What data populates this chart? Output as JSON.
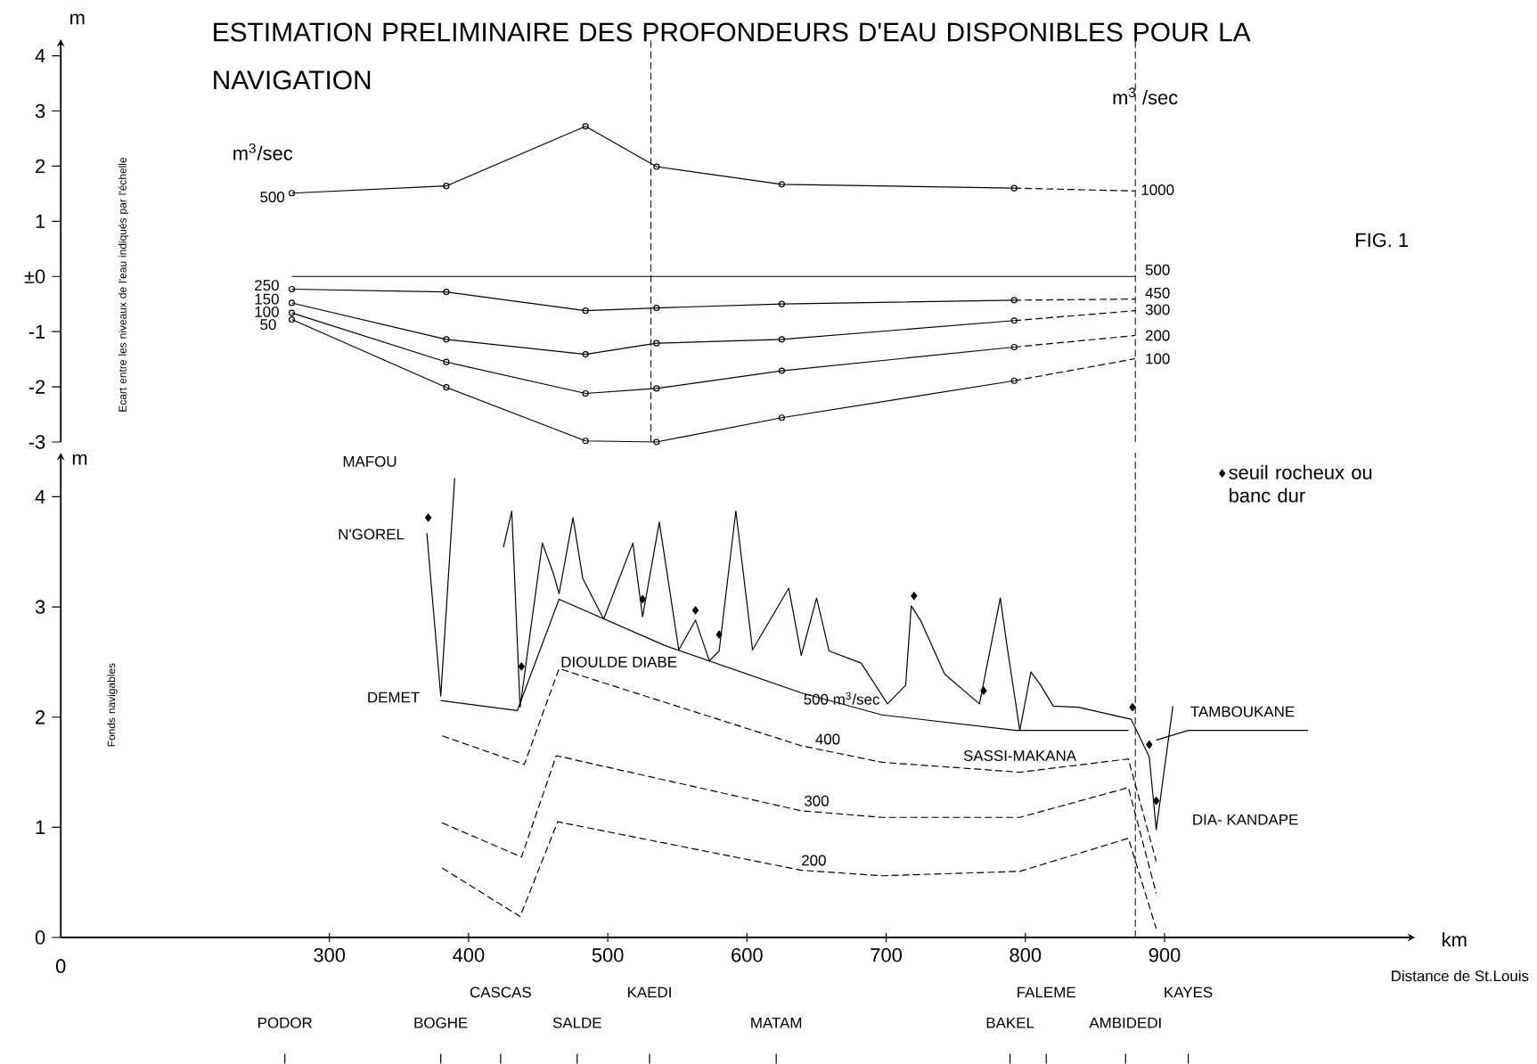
{
  "chart_data": [
    {
      "type": "line",
      "title": "ESTIMATION PRELIMINAIRE DES PROFONDEURS D'EAU DISPONIBLES POUR LA NAVIGATION",
      "ylabel": "Ecart entre les niveaux de l'eau indiqués par l'échelle",
      "xlim": [
        107,
        900
      ],
      "xticks": [
        300,
        400,
        500,
        600,
        700,
        800,
        900
      ],
      "ylim": [
        -3,
        4.3
      ],
      "yticks": [
        -3,
        -2,
        -1,
        {
          "value": 0,
          "label": "±0"
        },
        1,
        2,
        3,
        4
      ],
      "tick_labels": "y",
      "ref_lines": [
        {
          "axis": "x",
          "value": 531,
          "line_style": "dashed"
        },
        {
          "axis": "x",
          "value": 879,
          "line_style": "dashed"
        }
      ],
      "series": [
        {
          "color": "#000000",
          "marker": "circle",
          "line_style": "solid",
          "x": [
            273,
            384,
            484,
            535,
            625,
            792
          ],
          "values": [
            1.51,
            1.64,
            2.72,
            1.99,
            1.67,
            1.6
          ]
        },
        {
          "color": "#000000",
          "marker": "none",
          "line_style": "dashed",
          "x": [
            792,
            879
          ],
          "values": [
            1.6,
            1.55
          ]
        },
        {
          "color": "#000000",
          "marker": "none",
          "line_style": "solid",
          "x": [
            273,
            879
          ],
          "values": [
            0,
            0
          ]
        },
        {
          "color": "#000000",
          "marker": "circle",
          "line_style": "solid",
          "x": [
            273,
            384,
            484,
            535,
            625,
            792
          ],
          "values": [
            -0.23,
            -0.28,
            -0.62,
            -0.57,
            -0.5,
            -0.43
          ]
        },
        {
          "color": "#000000",
          "marker": "none",
          "line_style": "dashed",
          "x": [
            792,
            879
          ],
          "values": [
            -0.43,
            -0.41
          ]
        },
        {
          "color": "#000000",
          "marker": "circle",
          "line_style": "solid",
          "x": [
            273,
            384,
            484,
            535,
            625,
            792
          ],
          "values": [
            -0.48,
            -1.14,
            -1.41,
            -1.21,
            -1.14,
            -0.8
          ]
        },
        {
          "color": "#000000",
          "marker": "none",
          "line_style": "dashed",
          "x": [
            792,
            879
          ],
          "values": [
            -0.8,
            -0.62
          ]
        },
        {
          "color": "#000000",
          "marker": "circle",
          "line_style": "solid",
          "x": [
            273,
            384,
            484,
            535,
            625,
            792
          ],
          "values": [
            -0.66,
            -1.55,
            -2.12,
            -2.03,
            -1.71,
            -1.28
          ]
        },
        {
          "color": "#000000",
          "marker": "none",
          "line_style": "dashed",
          "x": [
            792,
            879
          ],
          "values": [
            -1.28,
            -1.07
          ]
        },
        {
          "color": "#000000",
          "marker": "circle",
          "line_style": "solid",
          "x": [
            273,
            384,
            484,
            535,
            625,
            792
          ],
          "values": [
            -0.78,
            -2.01,
            -2.98,
            -3.0,
            -2.56,
            -1.89
          ]
        },
        {
          "color": "#000000",
          "marker": "none",
          "line_style": "dashed",
          "x": [
            792,
            879
          ],
          "values": [
            -1.89,
            -1.49
          ]
        }
      ],
      "annotations": [
        "m",
        "FIG. 1",
        "m$^{3}$/sec",
        "m$^{3}$ /sec",
        "500",
        "250",
        "150",
        "100",
        "50",
        "1000",
        "500",
        "450",
        "300",
        "200",
        "100"
      ]
    },
    {
      "type": "line",
      "ylabel": "Fonds navigables",
      "xlabel": "Distance de St.Louis",
      "xlim": [
        107,
        1080
      ],
      "ylim": [
        0,
        4.4
      ],
      "xticks": [
        300,
        400,
        500,
        600,
        700,
        800,
        900
      ],
      "yticks": [
        0,
        1,
        2,
        3,
        4
      ],
      "legend": "top right",
      "ref_lines": [
        {
          "axis": "x",
          "value": 879,
          "line_style": "dashed"
        }
      ],
      "series": [
        {
          "color": "#000000",
          "marker": "none",
          "line_style": "solid",
          "x": [
            370,
            380,
            390
          ],
          "values": [
            3.67,
            2.19,
            4.17
          ]
        },
        {
          "color": "#000000",
          "marker": "none",
          "line_style": "solid",
          "x": [
            425,
            431,
            437,
            453,
            461,
            465,
            475,
            482,
            497,
            518,
            525,
            537,
            551,
            563,
            573,
            580,
            592,
            604,
            630,
            639,
            650,
            659,
            682,
            701,
            714,
            718,
            725,
            742,
            767,
            782,
            787,
            796,
            804,
            811,
            820,
            838,
            876,
            889,
            894,
            906
          ],
          "values": [
            3.54,
            3.87,
            2.09,
            3.58,
            3.3,
            3.12,
            3.81,
            3.26,
            2.89,
            3.58,
            2.91,
            3.77,
            2.61,
            2.88,
            2.51,
            2.6,
            3.87,
            2.61,
            3.17,
            2.56,
            3.08,
            2.6,
            2.49,
            2.12,
            2.29,
            3.01,
            2.87,
            2.39,
            2.12,
            3.08,
            2.63,
            1.88,
            2.41,
            2.29,
            2.1,
            2.09,
            1.98,
            1.64,
            0.98,
            2.1
          ]
        },
        {
          "color": "#000000",
          "marker": "none",
          "line_style": "solid",
          "x": [
            894,
            917,
            1003
          ],
          "values": [
            1.79,
            1.88,
            1.88
          ]
        },
        {
          "color": "#000000",
          "marker": "none",
          "line_style": "solid",
          "x": [
            380,
            435,
            465,
            541,
            639,
            697,
            793,
            874
          ],
          "values": [
            2.15,
            2.06,
            3.07,
            2.65,
            2.22,
            2.02,
            1.88,
            1.88
          ]
        },
        {
          "color": "#000000",
          "marker": "none",
          "line_style": "dashed",
          "x": [
            381,
            440,
            465,
            639,
            697,
            796,
            874,
            894
          ],
          "values": [
            1.83,
            1.57,
            2.44,
            1.74,
            1.59,
            1.5,
            1.62,
            0.69
          ]
        },
        {
          "color": "#000000",
          "marker": "none",
          "line_style": "dashed",
          "x": [
            381,
            438,
            463,
            639,
            697,
            796,
            874,
            894
          ],
          "values": [
            1.04,
            0.73,
            1.65,
            1.15,
            1.09,
            1.09,
            1.36,
            0.4
          ]
        },
        {
          "color": "#000000",
          "marker": "none",
          "line_style": "dashed",
          "x": [
            381,
            437,
            464,
            639,
            697,
            796,
            874,
            894
          ],
          "values": [
            0.63,
            0.19,
            1.05,
            0.61,
            0.56,
            0.6,
            0.9,
            0.08
          ]
        },
        {
          "type": "scatter",
          "name": "seuil rocheux ou banc dur",
          "color": "#000000",
          "marker": "diamond",
          "x": [
            371,
            438,
            525,
            563,
            580,
            720,
            770,
            877,
            889,
            894
          ],
          "values": [
            3.81,
            2.46,
            3.07,
            2.97,
            2.75,
            3.1,
            2.24,
            2.09,
            1.75,
            1.24
          ]
        }
      ],
      "annotations": [
        "m",
        "0",
        "km",
        "MAFOU",
        "N'GOREL",
        "DEMET",
        "DIOULDE DIABE",
        "500 m$^{3}$/sec",
        "400",
        "300",
        "200",
        "SASSI-MAKANA",
        "TAMBOUKANE",
        "DIA- KANDAPE",
        "PODOR",
        "BOGHE",
        "CASCAS",
        "SALDE",
        "KAEDI",
        "MATAM",
        "BAKEL",
        "FALEME",
        "AMBIDEDI",
        "KAYES"
      ]
    }
  ]
}
